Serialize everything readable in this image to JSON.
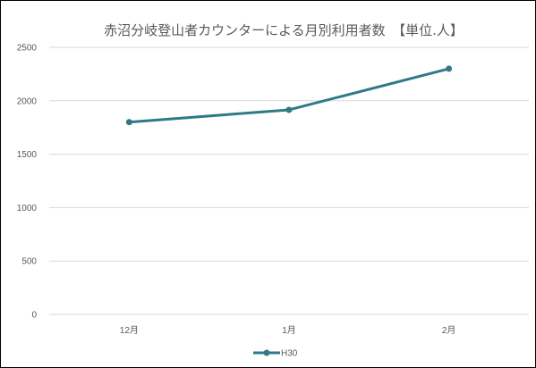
{
  "chart_data": {
    "type": "line",
    "title": "赤沼分岐登山者カウンターによる月別利用者数　【単位.人】",
    "categories": [
      "12月",
      "1月",
      "2月"
    ],
    "series": [
      {
        "name": "H30",
        "values": [
          1800,
          1915,
          2300
        ],
        "color": "#2e7a87"
      }
    ],
    "ylim": [
      0,
      2500
    ],
    "yticks": [
      0,
      500,
      1000,
      1500,
      2000,
      2500
    ],
    "grid": true,
    "legend": "bottom"
  }
}
